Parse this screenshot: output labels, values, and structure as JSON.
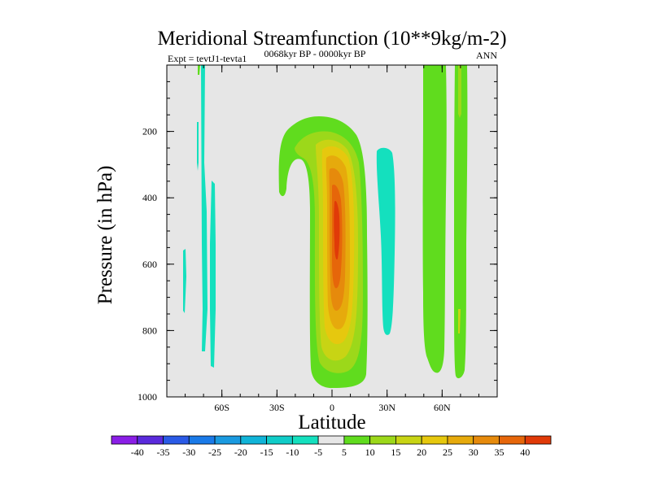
{
  "chart_data": {
    "type": "heatmap",
    "title": "Meridional Streamfunction (10**9kg/m-2)",
    "subtitle_left": "Expt = tevtJ1-tevta1",
    "subtitle_center": "0068kyr BP - 0000kyr BP",
    "subtitle_right": "ANN",
    "xlabel": "Latitude",
    "ylabel": "Pressure (in hPa)",
    "x_ticks": [
      {
        "value": -60,
        "label": "60S"
      },
      {
        "value": -30,
        "label": "30S"
      },
      {
        "value": 0,
        "label": "0"
      },
      {
        "value": 30,
        "label": "30N"
      },
      {
        "value": 60,
        "label": "60N"
      }
    ],
    "y_ticks": [
      {
        "value": 200,
        "label": "200"
      },
      {
        "value": 400,
        "label": "400"
      },
      {
        "value": 600,
        "label": "600"
      },
      {
        "value": 800,
        "label": "800"
      },
      {
        "value": 1000,
        "label": "1000"
      }
    ],
    "xlim": [
      -90,
      90
    ],
    "ylim": [
      1000,
      0
    ],
    "background_color": "#e6e6e6",
    "colorbar": {
      "levels": [
        -40,
        -35,
        -30,
        -25,
        -20,
        -15,
        -10,
        -5,
        5,
        10,
        15,
        20,
        25,
        30,
        35,
        40
      ],
      "labels": [
        "-40",
        "-35",
        "-30",
        "-25",
        "-20",
        "-15",
        "-10",
        "-5",
        "5",
        "10",
        "15",
        "20",
        "25",
        "30",
        "35",
        "40"
      ],
      "colors": [
        "#8a1ee6",
        "#5a2adc",
        "#2a5ae6",
        "#1a7ae8",
        "#1a9ae0",
        "#10b4d8",
        "#10ccc8",
        "#14e0be",
        "#e6e6e6",
        "#60dc1e",
        "#9cd81a",
        "#c8d414",
        "#e6c80e",
        "#e6aa0c",
        "#e68a0c",
        "#e6660a",
        "#e03a08"
      ]
    },
    "regions": [
      {
        "name": "central-positive-cell",
        "level_from": 5,
        "level_to": 40,
        "lat_range": [
          -15,
          20
        ],
        "p_range": [
          145,
          970
        ],
        "peak": 40,
        "peak_lat": 3,
        "peak_p": 450
      },
      {
        "name": "hook-positive",
        "level_from": 5,
        "level_to": 15,
        "lat_range": [
          -30,
          -5
        ],
        "p_range": [
          140,
          340
        ],
        "peak": 10
      },
      {
        "name": "negative-cell-20N",
        "level_from": -5,
        "level_to": -5,
        "lat_range": [
          24,
          37
        ],
        "p_range": [
          230,
          800
        ]
      },
      {
        "name": "positive-band-55N",
        "level_from": 5,
        "level_to": 5,
        "lat_range": [
          53,
          66
        ],
        "p_range": [
          0,
          920
        ]
      },
      {
        "name": "positive-band-70N",
        "level_from": 5,
        "level_to": 10,
        "lat_range": [
          67,
          73
        ],
        "p_range": [
          0,
          950
        ]
      },
      {
        "name": "negative-streaks-65S",
        "level_from": -5,
        "level_to": -5,
        "lat_range": [
          -82,
          -62
        ],
        "p_range": [
          0,
          900
        ]
      }
    ]
  }
}
